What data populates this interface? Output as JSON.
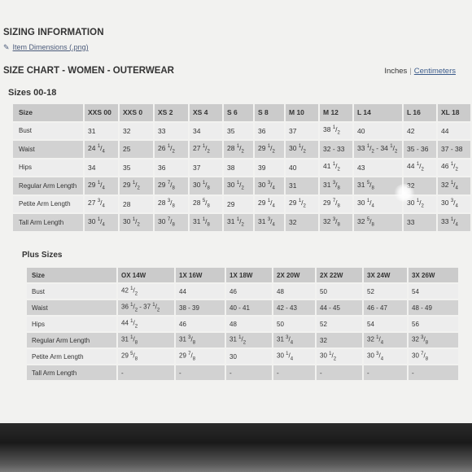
{
  "header": {
    "sizing_title": "SIZING INFORMATION",
    "item_dimensions_link": "Item Dimensions (.png)",
    "chart_title": "SIZE CHART - WOMEN - OUTERWEAR",
    "unit_inches": "Inches",
    "unit_separator": "|",
    "unit_centimeters": "Centimeters"
  },
  "regular": {
    "title": "Sizes 00-18",
    "columns": [
      "Size",
      "XXS 00",
      "XXS 0",
      "XS 2",
      "XS 4",
      "S 6",
      "S 8",
      "M 10",
      "M 12",
      "L 14",
      "L 16",
      "XL 18"
    ],
    "rows": [
      {
        "label": "Bust",
        "values": [
          "31",
          "32",
          "33",
          "34",
          "35",
          "36",
          "37",
          "38 1/2",
          "40",
          "42",
          "44"
        ]
      },
      {
        "label": "Waist",
        "values": [
          "24 1/4",
          "25",
          "26 1/2",
          "27 1/2",
          "28 1/2",
          "29 1/2",
          "30 1/2",
          "32 - 33",
          "33 1/2 - 34 1/2",
          "35 - 36",
          "37 - 38"
        ]
      },
      {
        "label": "Hips",
        "values": [
          "34",
          "35",
          "36",
          "37",
          "38",
          "39",
          "40",
          "41 1/2",
          "43",
          "44 1/2",
          "46 1/2"
        ]
      },
      {
        "label": "Regular Arm Length",
        "values": [
          "29 1/4",
          "29 1/2",
          "29 7/8",
          "30 1/8",
          "30 1/2",
          "30 3/4",
          "31",
          "31 3/8",
          "31 5/8",
          "32",
          "32 1/4"
        ]
      },
      {
        "label": "Petite Arm Length",
        "values": [
          "27 3/4",
          "28",
          "28 3/8",
          "28 5/8",
          "29",
          "29 1/4",
          "29 1/2",
          "29 7/8",
          "30 1/4",
          "30 1/2",
          "30 3/4"
        ]
      },
      {
        "label": "Tall Arm Length",
        "values": [
          "30 1/4",
          "30 1/2",
          "30 7/8",
          "31 1/8",
          "31 1/2",
          "31 3/4",
          "32",
          "32 3/8",
          "32 5/8",
          "33",
          "33 1/4"
        ]
      }
    ]
  },
  "plus": {
    "title": "Plus Sizes",
    "columns": [
      "Size",
      "OX 14W",
      "1X 16W",
      "1X 18W",
      "2X 20W",
      "2X 22W",
      "3X 24W",
      "3X 26W"
    ],
    "rows": [
      {
        "label": "Bust",
        "values": [
          "42 1/2",
          "44",
          "46",
          "48",
          "50",
          "52",
          "54"
        ]
      },
      {
        "label": "Waist",
        "values": [
          "36 1/2 - 37 1/2",
          "38 - 39",
          "40 - 41",
          "42 - 43",
          "44 - 45",
          "46 - 47",
          "48 - 49"
        ]
      },
      {
        "label": "Hips",
        "values": [
          "44 1/2",
          "46",
          "48",
          "50",
          "52",
          "54",
          "56"
        ]
      },
      {
        "label": "Regular Arm Length",
        "values": [
          "31 1/8",
          "31 3/8",
          "31 1/2",
          "31 3/4",
          "32",
          "32 1/4",
          "32 3/8"
        ]
      },
      {
        "label": "Petite Arm Length",
        "values": [
          "29 5/8",
          "29 7/8",
          "30",
          "30 1/4",
          "30 1/2",
          "30 3/4",
          "30 7/8"
        ]
      },
      {
        "label": "Tall Arm Length",
        "values": [
          "-",
          "-",
          "-",
          "-",
          "-",
          "-",
          "-"
        ]
      }
    ]
  }
}
